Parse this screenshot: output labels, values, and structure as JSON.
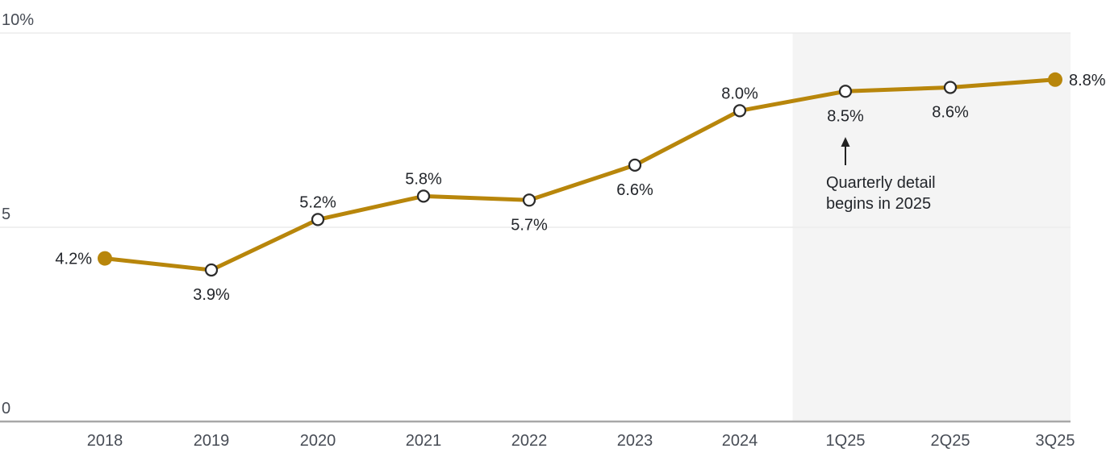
{
  "page": {
    "background": "#ffffff"
  },
  "chart_data": {
    "type": "line",
    "title": "",
    "xlabel": "",
    "ylabel": "",
    "categories": [
      "2018",
      "2019",
      "2020",
      "2021",
      "2022",
      "2023",
      "2024",
      "1Q25",
      "2Q25",
      "3Q25"
    ],
    "values": [
      4.2,
      3.9,
      5.2,
      5.8,
      5.7,
      6.6,
      8.0,
      8.5,
      8.6,
      8.8
    ],
    "point_labels": [
      "4.2%",
      "3.9%",
      "5.2%",
      "5.8%",
      "5.7%",
      "6.6%",
      "8.0%",
      "8.5%",
      "8.6%",
      "8.8%"
    ],
    "label_positions": [
      "left",
      "below",
      "above",
      "above",
      "below",
      "below",
      "above",
      "below",
      "below",
      "right"
    ],
    "marker_styles": [
      "filled",
      "open",
      "open",
      "open",
      "open",
      "open",
      "open",
      "open",
      "open",
      "filled"
    ],
    "y_ticks": [
      {
        "value": 0,
        "label": "0"
      },
      {
        "value": 5,
        "label": "5"
      },
      {
        "value": 10,
        "label": "10%"
      }
    ],
    "ylim": [
      0,
      10
    ],
    "grid": "horizontal-only",
    "legend": "none",
    "shaded_region": {
      "start_after_category": "2024",
      "end_at": "right-edge-of-plot"
    },
    "annotation": {
      "lines": [
        "Quarterly detail",
        "begins in 2025"
      ],
      "arrow": "up-arrow-below-1Q25-point",
      "anchor_category": "1Q25"
    },
    "colors": {
      "line": "#B8860B",
      "marker_endpoint_fill": "#B8860B",
      "marker_open_fill": "#ffffff",
      "marker_stroke": "#2b2b2b",
      "gridline": "#ececec",
      "axis_line": "#a8a8a8",
      "shade": "#f4f4f4",
      "value_label": "#23262b",
      "tick_label": "#474c55",
      "annotation_text": "#23262b",
      "annotation_arrow": "#222222"
    }
  }
}
